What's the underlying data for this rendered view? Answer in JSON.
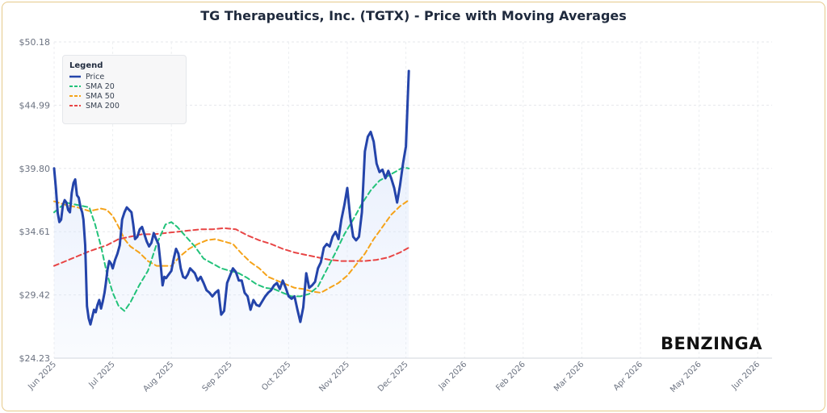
{
  "title": "TG Therapeutics, Inc. (TGTX) - Price with Moving Averages",
  "brand": "BENZINGA",
  "legend": {
    "title": "Legend",
    "items": [
      {
        "label": "Price",
        "color": "#2444aa",
        "dash": "solid"
      },
      {
        "label": "SMA 20",
        "color": "#22c27a",
        "dash": "dashed"
      },
      {
        "label": "SMA 50",
        "color": "#f5a31a",
        "dash": "dashed"
      },
      {
        "label": "SMA 200",
        "color": "#e84545",
        "dash": "dashed"
      }
    ]
  },
  "chart_data": {
    "type": "line",
    "title": "TG Therapeutics, Inc. (TGTX) - Price with Moving Averages",
    "ylim": [
      24.23,
      50.18
    ],
    "yticks": [
      "$24.23",
      "$29.42",
      "$34.61",
      "$39.80",
      "$44.99",
      "$50.18"
    ],
    "xticks": [
      "Jun 2025",
      "Jul 2025",
      "Aug 2025",
      "Sep 2025",
      "Oct 2025",
      "Nov 2025",
      "Dec 2025",
      "Jan 2026",
      "Feb 2026",
      "Mar 2026",
      "Apr 2026",
      "May 2026",
      "Jun 2026"
    ],
    "grid": true,
    "legend_position": "top-left",
    "series": [
      {
        "name": "Price",
        "color": "#2444aa",
        "points": [
          [
            0,
            39.8
          ],
          [
            0.03,
            38.2
          ],
          [
            0.06,
            36.2
          ],
          [
            0.09,
            35.4
          ],
          [
            0.12,
            35.6
          ],
          [
            0.15,
            36.8
          ],
          [
            0.18,
            37.2
          ],
          [
            0.21,
            37.0
          ],
          [
            0.24,
            36.4
          ],
          [
            0.27,
            36.2
          ],
          [
            0.3,
            37.8
          ],
          [
            0.33,
            38.6
          ],
          [
            0.36,
            38.9
          ],
          [
            0.39,
            37.6
          ],
          [
            0.42,
            37.4
          ],
          [
            0.45,
            36.6
          ],
          [
            0.48,
            36.2
          ],
          [
            0.5,
            35.6
          ],
          [
            0.53,
            33.5
          ],
          [
            0.56,
            28.5
          ],
          [
            0.59,
            27.5
          ],
          [
            0.62,
            27.0
          ],
          [
            0.65,
            27.6
          ],
          [
            0.68,
            28.2
          ],
          [
            0.71,
            28.0
          ],
          [
            0.74,
            28.6
          ],
          [
            0.77,
            29.0
          ],
          [
            0.8,
            28.3
          ],
          [
            0.83,
            28.9
          ],
          [
            0.86,
            29.6
          ],
          [
            0.88,
            30.3
          ],
          [
            0.91,
            31.5
          ],
          [
            0.94,
            32.2
          ],
          [
            0.97,
            32.0
          ],
          [
            1.0,
            31.6
          ],
          [
            1.04,
            32.3
          ],
          [
            1.08,
            32.8
          ],
          [
            1.12,
            33.5
          ],
          [
            1.16,
            35.6
          ],
          [
            1.2,
            36.2
          ],
          [
            1.24,
            36.6
          ],
          [
            1.28,
            36.4
          ],
          [
            1.32,
            36.2
          ],
          [
            1.35,
            35.2
          ],
          [
            1.38,
            34.0
          ],
          [
            1.42,
            34.2
          ],
          [
            1.46,
            34.8
          ],
          [
            1.5,
            35.0
          ],
          [
            1.54,
            34.4
          ],
          [
            1.58,
            33.8
          ],
          [
            1.62,
            33.4
          ],
          [
            1.66,
            33.7
          ],
          [
            1.7,
            34.5
          ],
          [
            1.74,
            34.0
          ],
          [
            1.78,
            33.6
          ],
          [
            1.82,
            31.8
          ],
          [
            1.85,
            30.2
          ],
          [
            1.88,
            30.9
          ],
          [
            1.91,
            30.8
          ],
          [
            1.94,
            31.0
          ],
          [
            1.97,
            31.2
          ],
          [
            2.0,
            31.4
          ],
          [
            2.04,
            32.4
          ],
          [
            2.08,
            33.2
          ],
          [
            2.12,
            32.8
          ],
          [
            2.16,
            31.6
          ],
          [
            2.2,
            30.9
          ],
          [
            2.24,
            30.8
          ],
          [
            2.28,
            31.1
          ],
          [
            2.32,
            31.6
          ],
          [
            2.36,
            31.4
          ],
          [
            2.4,
            31.2
          ],
          [
            2.45,
            30.6
          ],
          [
            2.5,
            30.9
          ],
          [
            2.55,
            30.4
          ],
          [
            2.6,
            29.8
          ],
          [
            2.65,
            29.6
          ],
          [
            2.7,
            29.3
          ],
          [
            2.75,
            29.6
          ],
          [
            2.8,
            29.8
          ],
          [
            2.85,
            27.8
          ],
          [
            2.9,
            28.1
          ],
          [
            2.95,
            30.4
          ],
          [
            3.0,
            31.0
          ],
          [
            3.05,
            31.6
          ],
          [
            3.1,
            31.3
          ],
          [
            3.15,
            30.6
          ],
          [
            3.2,
            30.6
          ],
          [
            3.25,
            29.6
          ],
          [
            3.3,
            29.3
          ],
          [
            3.35,
            28.2
          ],
          [
            3.4,
            29.0
          ],
          [
            3.45,
            28.6
          ],
          [
            3.5,
            28.5
          ],
          [
            3.55,
            28.9
          ],
          [
            3.6,
            29.3
          ],
          [
            3.65,
            29.6
          ],
          [
            3.7,
            29.8
          ],
          [
            3.75,
            30.2
          ],
          [
            3.8,
            30.4
          ],
          [
            3.85,
            29.9
          ],
          [
            3.9,
            30.6
          ],
          [
            3.95,
            30.0
          ],
          [
            4.0,
            29.3
          ],
          [
            4.05,
            29.1
          ],
          [
            4.1,
            29.3
          ],
          [
            4.15,
            28.2
          ],
          [
            4.2,
            27.2
          ],
          [
            4.25,
            28.4
          ],
          [
            4.3,
            31.2
          ],
          [
            4.35,
            30.0
          ],
          [
            4.4,
            30.2
          ],
          [
            4.45,
            30.5
          ],
          [
            4.5,
            31.6
          ],
          [
            4.55,
            32.1
          ],
          [
            4.6,
            33.3
          ],
          [
            4.65,
            33.6
          ],
          [
            4.7,
            33.4
          ],
          [
            4.75,
            34.2
          ],
          [
            4.8,
            34.6
          ],
          [
            4.85,
            34.0
          ],
          [
            4.9,
            35.6
          ],
          [
            4.95,
            36.8
          ],
          [
            5.0,
            38.2
          ],
          [
            5.05,
            35.8
          ],
          [
            5.1,
            34.2
          ],
          [
            5.15,
            33.9
          ],
          [
            5.2,
            34.2
          ],
          [
            5.25,
            36.2
          ],
          [
            5.3,
            41.2
          ],
          [
            5.35,
            42.4
          ],
          [
            5.4,
            42.8
          ],
          [
            5.45,
            42.0
          ],
          [
            5.5,
            40.2
          ],
          [
            5.55,
            39.5
          ],
          [
            5.6,
            39.7
          ],
          [
            5.65,
            39.0
          ],
          [
            5.7,
            39.6
          ],
          [
            5.75,
            39.0
          ],
          [
            5.8,
            38.2
          ],
          [
            5.85,
            37.0
          ],
          [
            5.9,
            38.4
          ],
          [
            5.95,
            40.2
          ],
          [
            6.0,
            41.6
          ],
          [
            6.05,
            47.8
          ]
        ]
      },
      {
        "name": "SMA 20",
        "color": "#22c27a",
        "points": [
          [
            0,
            36.2
          ],
          [
            0.2,
            37.0
          ],
          [
            0.4,
            36.8
          ],
          [
            0.5,
            36.7
          ],
          [
            0.6,
            36.6
          ],
          [
            0.7,
            35.2
          ],
          [
            0.8,
            33.4
          ],
          [
            0.9,
            31.2
          ],
          [
            1.0,
            29.6
          ],
          [
            1.1,
            28.5
          ],
          [
            1.2,
            28.1
          ],
          [
            1.3,
            28.8
          ],
          [
            1.45,
            30.2
          ],
          [
            1.6,
            31.4
          ],
          [
            1.75,
            33.6
          ],
          [
            1.9,
            35.2
          ],
          [
            2.0,
            35.4
          ],
          [
            2.1,
            35.0
          ],
          [
            2.25,
            34.2
          ],
          [
            2.4,
            33.4
          ],
          [
            2.55,
            32.4
          ],
          [
            2.7,
            32.0
          ],
          [
            2.85,
            31.6
          ],
          [
            3.0,
            31.4
          ],
          [
            3.15,
            31.2
          ],
          [
            3.3,
            30.8
          ],
          [
            3.45,
            30.3
          ],
          [
            3.6,
            30.0
          ],
          [
            3.75,
            29.9
          ],
          [
            3.9,
            29.6
          ],
          [
            4.05,
            29.3
          ],
          [
            4.2,
            29.3
          ],
          [
            4.35,
            29.5
          ],
          [
            4.5,
            30.1
          ],
          [
            4.65,
            31.5
          ],
          [
            4.8,
            32.9
          ],
          [
            4.95,
            34.4
          ],
          [
            5.1,
            35.6
          ],
          [
            5.25,
            36.9
          ],
          [
            5.4,
            38.0
          ],
          [
            5.55,
            38.8
          ],
          [
            5.7,
            39.2
          ],
          [
            5.85,
            39.6
          ],
          [
            5.95,
            39.9
          ],
          [
            6.05,
            39.8
          ]
        ]
      },
      {
        "name": "SMA 50",
        "color": "#f5a31a",
        "points": [
          [
            0,
            37.1
          ],
          [
            0.2,
            36.8
          ],
          [
            0.4,
            36.6
          ],
          [
            0.6,
            36.3
          ],
          [
            0.7,
            36.4
          ],
          [
            0.8,
            36.5
          ],
          [
            0.9,
            36.4
          ],
          [
            1.0,
            35.9
          ],
          [
            1.1,
            35.0
          ],
          [
            1.2,
            34.0
          ],
          [
            1.3,
            33.4
          ],
          [
            1.45,
            32.9
          ],
          [
            1.6,
            32.2
          ],
          [
            1.75,
            31.8
          ],
          [
            1.9,
            31.8
          ],
          [
            2.0,
            31.8
          ],
          [
            2.15,
            32.6
          ],
          [
            2.3,
            33.2
          ],
          [
            2.45,
            33.6
          ],
          [
            2.6,
            33.9
          ],
          [
            2.75,
            34.0
          ],
          [
            2.9,
            33.8
          ],
          [
            3.05,
            33.6
          ],
          [
            3.2,
            32.8
          ],
          [
            3.35,
            32.1
          ],
          [
            3.5,
            31.6
          ],
          [
            3.65,
            30.9
          ],
          [
            3.8,
            30.6
          ],
          [
            3.95,
            30.3
          ],
          [
            4.1,
            30.0
          ],
          [
            4.25,
            29.9
          ],
          [
            4.4,
            29.7
          ],
          [
            4.55,
            29.6
          ],
          [
            4.7,
            30.0
          ],
          [
            4.85,
            30.4
          ],
          [
            5.0,
            31.0
          ],
          [
            5.15,
            31.9
          ],
          [
            5.3,
            32.8
          ],
          [
            5.45,
            34.0
          ],
          [
            5.6,
            35.0
          ],
          [
            5.75,
            36.0
          ],
          [
            5.9,
            36.7
          ],
          [
            6.05,
            37.2
          ]
        ]
      },
      {
        "name": "SMA 200",
        "color": "#e84545",
        "points": [
          [
            0,
            31.8
          ],
          [
            0.3,
            32.4
          ],
          [
            0.6,
            33.0
          ],
          [
            0.9,
            33.5
          ],
          [
            1.1,
            34.0
          ],
          [
            1.3,
            34.2
          ],
          [
            1.5,
            34.4
          ],
          [
            1.7,
            34.4
          ],
          [
            1.9,
            34.5
          ],
          [
            2.1,
            34.6
          ],
          [
            2.3,
            34.7
          ],
          [
            2.5,
            34.8
          ],
          [
            2.7,
            34.8
          ],
          [
            2.9,
            34.9
          ],
          [
            3.1,
            34.8
          ],
          [
            3.3,
            34.3
          ],
          [
            3.5,
            33.9
          ],
          [
            3.7,
            33.6
          ],
          [
            3.9,
            33.2
          ],
          [
            4.1,
            32.9
          ],
          [
            4.3,
            32.7
          ],
          [
            4.5,
            32.5
          ],
          [
            4.7,
            32.3
          ],
          [
            4.9,
            32.2
          ],
          [
            5.1,
            32.2
          ],
          [
            5.3,
            32.2
          ],
          [
            5.5,
            32.3
          ],
          [
            5.7,
            32.5
          ],
          [
            5.9,
            32.9
          ],
          [
            6.05,
            33.3
          ]
        ]
      }
    ]
  }
}
